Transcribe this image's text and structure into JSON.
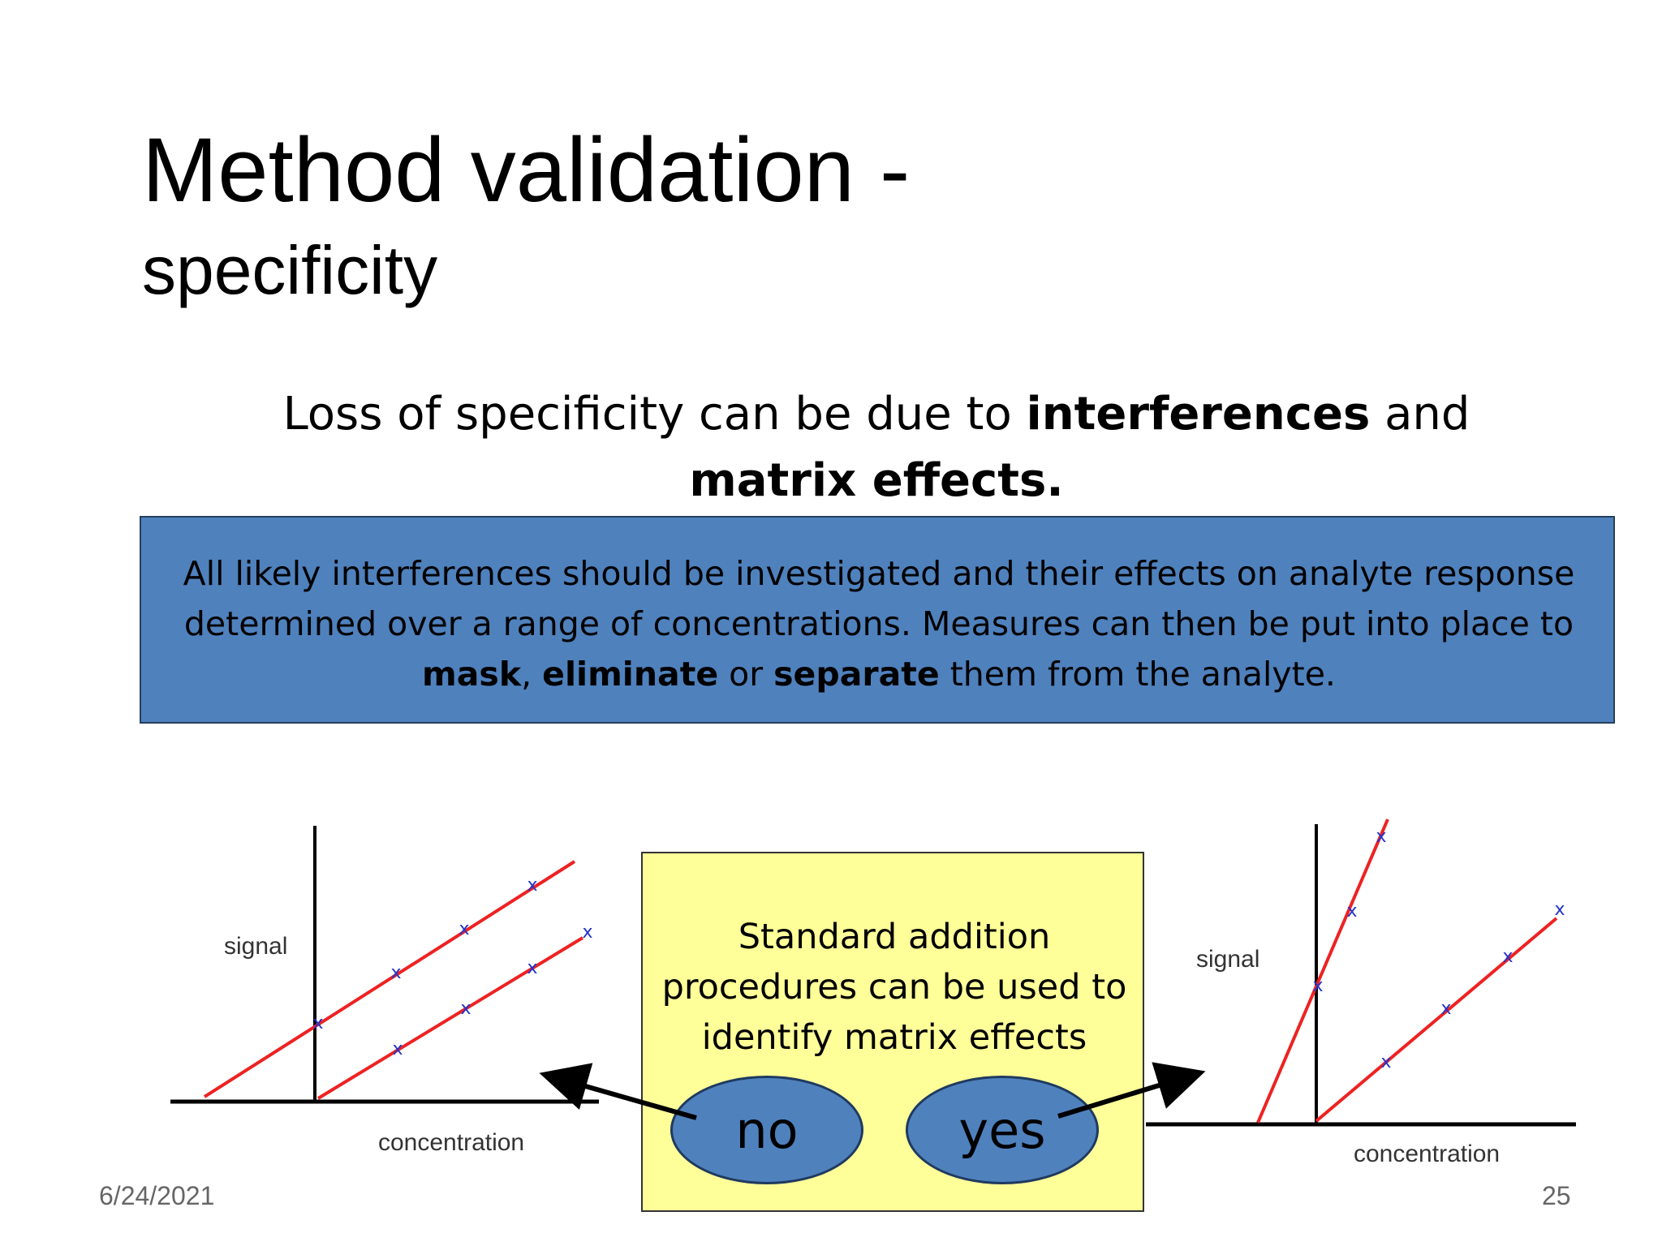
{
  "slide": {
    "title": "Method validation -",
    "subtitle": "specificity",
    "intro": {
      "part1": "Loss of specificity can be due to ",
      "bold1": "interferences",
      "part2": " and ",
      "bold2": "matrix effects."
    },
    "bluebox": {
      "part1": "All likely interferences should be investigated and their effects on analyte response determined over a range of concentrations.  Measures can then be put into place to ",
      "bold1": "mask",
      "part2": ", ",
      "bold2": "eliminate",
      "part3": " or ",
      "bold3": "separate",
      "part4": " them from the analyte."
    },
    "yellowbox": {
      "text": "Standard addition procedures can be used to identify matrix effects"
    },
    "ovals": {
      "no": "no",
      "yes": "yes"
    },
    "footer": {
      "date": "6/24/2021",
      "page": "25"
    }
  },
  "colors": {
    "blue_fill": "#4f81bd",
    "yellow_fill": "#ffff99",
    "line_red": "#ee2222",
    "marker_blue": "#2233cc"
  },
  "chart_data": [
    {
      "type": "line",
      "xlabel": "concentration",
      "ylabel": "signal",
      "note": "parallel slopes",
      "marker": "x"
    },
    {
      "type": "line",
      "xlabel": "concentration",
      "ylabel": "signal",
      "note": "different slopes",
      "marker": "x"
    }
  ]
}
